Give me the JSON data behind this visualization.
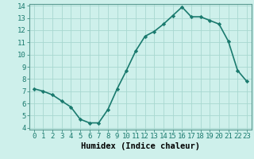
{
  "title": "",
  "xlabel": "Humidex (Indice chaleur)",
  "ylabel": "",
  "x": [
    0,
    1,
    2,
    3,
    4,
    5,
    6,
    7,
    8,
    9,
    10,
    11,
    12,
    13,
    14,
    15,
    16,
    17,
    18,
    19,
    20,
    21,
    22,
    23
  ],
  "y": [
    7.2,
    7.0,
    6.7,
    6.2,
    5.7,
    4.7,
    4.4,
    4.4,
    5.5,
    7.2,
    8.7,
    10.3,
    11.5,
    11.9,
    12.5,
    13.2,
    13.9,
    13.1,
    13.1,
    12.8,
    12.5,
    11.1,
    8.7,
    7.8
  ],
  "xlim": [
    -0.5,
    23.5
  ],
  "ylim": [
    3.85,
    14.15
  ],
  "yticks": [
    4,
    5,
    6,
    7,
    8,
    9,
    10,
    11,
    12,
    13,
    14
  ],
  "xticks": [
    0,
    1,
    2,
    3,
    4,
    5,
    6,
    7,
    8,
    9,
    10,
    11,
    12,
    13,
    14,
    15,
    16,
    17,
    18,
    19,
    20,
    21,
    22,
    23
  ],
  "line_color": "#1a7a6e",
  "marker": "D",
  "marker_size": 2.2,
  "bg_color": "#cef0eb",
  "grid_color": "#a8d8d0",
  "tick_fontsize": 6.5,
  "xlabel_fontsize": 7.5,
  "linewidth": 1.2
}
